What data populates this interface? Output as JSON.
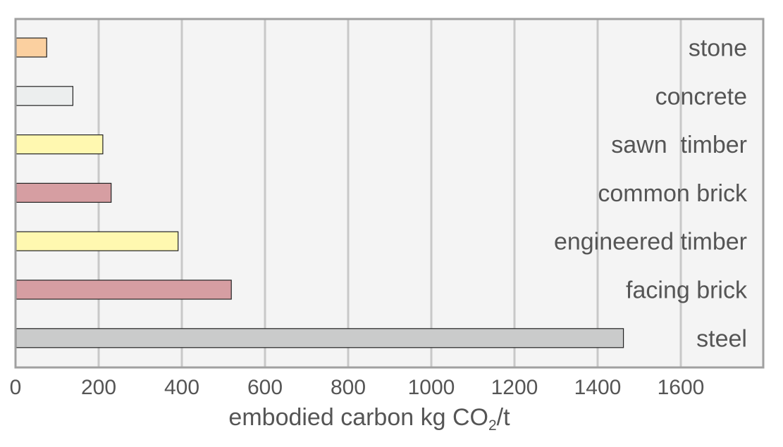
{
  "chart_data": {
    "type": "bar",
    "orientation": "horizontal",
    "categories": [
      "stone",
      "concrete",
      "sawn  timber",
      "common brick",
      "engineered timber",
      "facing brick",
      "steel"
    ],
    "values": [
      75,
      138,
      210,
      230,
      391,
      519,
      1462
    ],
    "bar_colors": [
      "#FBD0A0",
      "#ECEEEE",
      "#FFF8B0",
      "#D69EA2",
      "#FFF8B0",
      "#D69EA2",
      "#CACBCB"
    ],
    "x_ticks": [
      0,
      200,
      400,
      600,
      800,
      1000,
      1200,
      1400,
      1600
    ],
    "xlim": [
      0,
      1800
    ],
    "xlabel": {
      "prefix": "embodied carbon kg CO",
      "subscript": "2",
      "suffix": "/t"
    },
    "ylabel": "",
    "title": "",
    "grid": "vertical",
    "plot_background": "#F4F4F4",
    "grid_color": "#C8C8C8",
    "frame_color": "#A0A0A0",
    "label_placement": "right-inside"
  }
}
